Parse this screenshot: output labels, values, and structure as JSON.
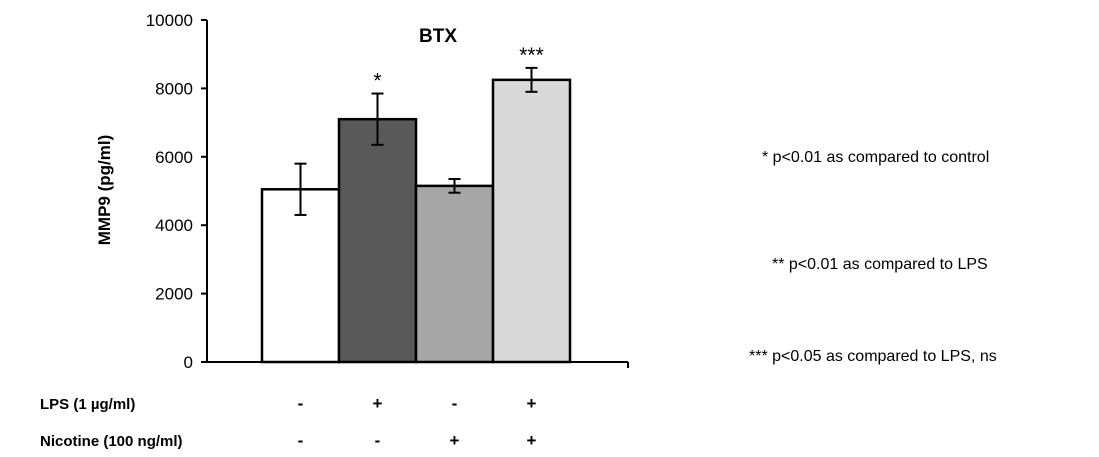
{
  "chart_data": {
    "type": "bar",
    "title": "BTX",
    "ylabel": "MMP9  (pg/ml)",
    "xlabel": "",
    "ylim": [
      0,
      10000
    ],
    "yticks": [
      0,
      2000,
      4000,
      6000,
      8000,
      10000
    ],
    "grid": false,
    "bars": [
      {
        "value": 5050,
        "error": 750,
        "color": "#ffffff",
        "significance": ""
      },
      {
        "value": 7100,
        "error": 750,
        "color": "#595959",
        "significance": "*"
      },
      {
        "value": 5150,
        "error": 200,
        "color": "#a6a6a6",
        "significance": ""
      },
      {
        "value": 8250,
        "error": 350,
        "color": "#d9d9d9",
        "significance": "***"
      }
    ],
    "conditions": [
      {
        "label": "LPS (1 µg/ml)",
        "values": [
          "-",
          "+",
          "-",
          "+"
        ]
      },
      {
        "label": "Nicotine (100 ng/ml)",
        "values": [
          "-",
          "-",
          "+",
          "+"
        ]
      }
    ]
  },
  "notes": [
    "* p<0.01 as compared to control",
    "** p<0.01 as compared to LPS",
    "*** p<0.05 as compared to LPS, ns"
  ]
}
